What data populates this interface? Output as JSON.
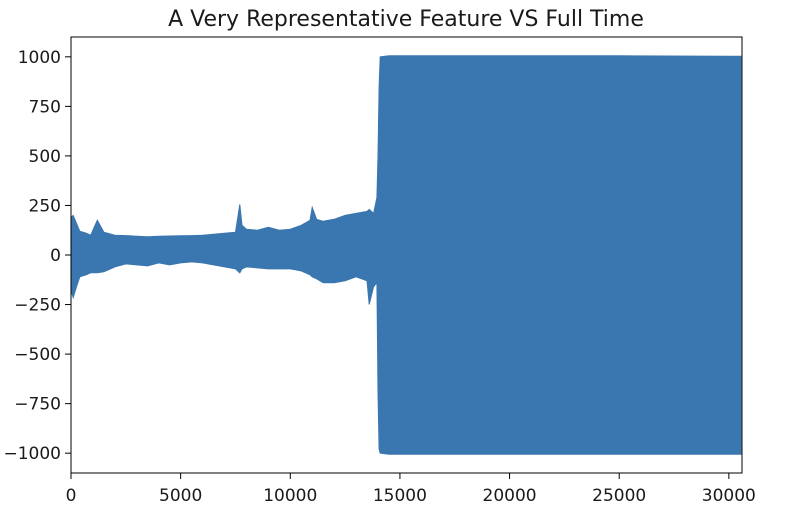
{
  "chart_data": {
    "type": "line",
    "title": "A Very Representative Feature VS Full Time",
    "xlabel": "",
    "ylabel": "",
    "xlim": [
      0,
      30600
    ],
    "ylim": [
      -1100,
      1100
    ],
    "grid": false,
    "legend": "none",
    "color": "#3a76af",
    "x_ticks": [
      0,
      5000,
      10000,
      15000,
      20000,
      25000,
      30000
    ],
    "y_ticks": [
      1000,
      750,
      500,
      250,
      0,
      -250,
      -500,
      -750,
      -1000
    ],
    "series": [
      {
        "x": [
          0,
          100,
          250,
          400,
          700,
          900,
          1200,
          1500,
          2000,
          2500,
          3000,
          3500,
          4000,
          4500,
          5000,
          5500,
          6000,
          6500,
          7000,
          7500,
          7700,
          7800,
          8000,
          8500,
          9000,
          9500,
          10000,
          10500,
          10900,
          11000,
          11200,
          11500,
          12000,
          12500,
          13000,
          13500,
          13600,
          13800,
          13950,
          14000,
          14050,
          14100,
          14500,
          15000,
          20000,
          25000,
          30000,
          30550
        ],
        "upper": [
          190,
          200,
          160,
          120,
          110,
          100,
          175,
          115,
          100,
          98,
          95,
          92,
          95,
          96,
          97,
          98,
          100,
          105,
          110,
          115,
          255,
          150,
          130,
          125,
          140,
          125,
          130,
          150,
          175,
          240,
          180,
          170,
          180,
          200,
          210,
          220,
          230,
          210,
          290,
          500,
          850,
          1000,
          1005,
          1005,
          1005,
          1005,
          1003,
          1003
        ],
        "lower": [
          -180,
          -215,
          -160,
          -110,
          -100,
          -90,
          -90,
          -85,
          -60,
          -45,
          -50,
          -55,
          -40,
          -50,
          -40,
          -35,
          -40,
          -50,
          -60,
          -70,
          -90,
          -70,
          -60,
          -65,
          -70,
          -70,
          -70,
          -80,
          -100,
          -110,
          -120,
          -140,
          -140,
          -130,
          -110,
          -130,
          -250,
          -160,
          -140,
          -700,
          -980,
          -1000,
          -1005,
          -1005,
          -1005,
          -1005,
          -1005,
          -1005
        ]
      }
    ]
  }
}
